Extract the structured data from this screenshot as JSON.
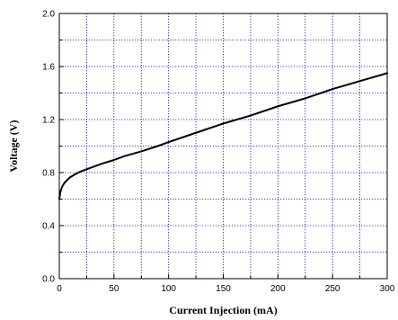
{
  "chart_data": {
    "type": "line",
    "title": "",
    "xlabel": "Current Injection (mA)",
    "ylabel": "Voltage (V)",
    "xlim": [
      0,
      300
    ],
    "ylim": [
      0.0,
      2.0
    ],
    "x_ticks": [
      0,
      50,
      100,
      150,
      200,
      250,
      300
    ],
    "x_tick_labels": [
      "0",
      "50",
      "100",
      "150",
      "200",
      "250",
      "300"
    ],
    "y_ticks": [
      0.0,
      0.4,
      0.8,
      1.2,
      1.6,
      2.0
    ],
    "y_tick_labels": [
      "0.0",
      "0.4",
      "0.8",
      "1.2",
      "1.6",
      "2.0"
    ],
    "grid": true,
    "grid_style": "dotted",
    "x_grid_step": 25,
    "y_grid_step": 0.2,
    "legend": "none",
    "colors": {
      "line": "#000000",
      "grid": "#0000cc",
      "frame": "#000000"
    },
    "series": [
      {
        "x": [
          0,
          1,
          2,
          3,
          5,
          8,
          10,
          15,
          20,
          25,
          30,
          40,
          50,
          60,
          75,
          90,
          100,
          125,
          150,
          175,
          200,
          225,
          250,
          275,
          300
        ],
        "y": [
          0.6,
          0.655,
          0.68,
          0.7,
          0.725,
          0.75,
          0.765,
          0.79,
          0.81,
          0.825,
          0.84,
          0.87,
          0.895,
          0.925,
          0.96,
          1.0,
          1.03,
          1.1,
          1.17,
          1.23,
          1.3,
          1.36,
          1.43,
          1.49,
          1.55
        ]
      }
    ]
  }
}
